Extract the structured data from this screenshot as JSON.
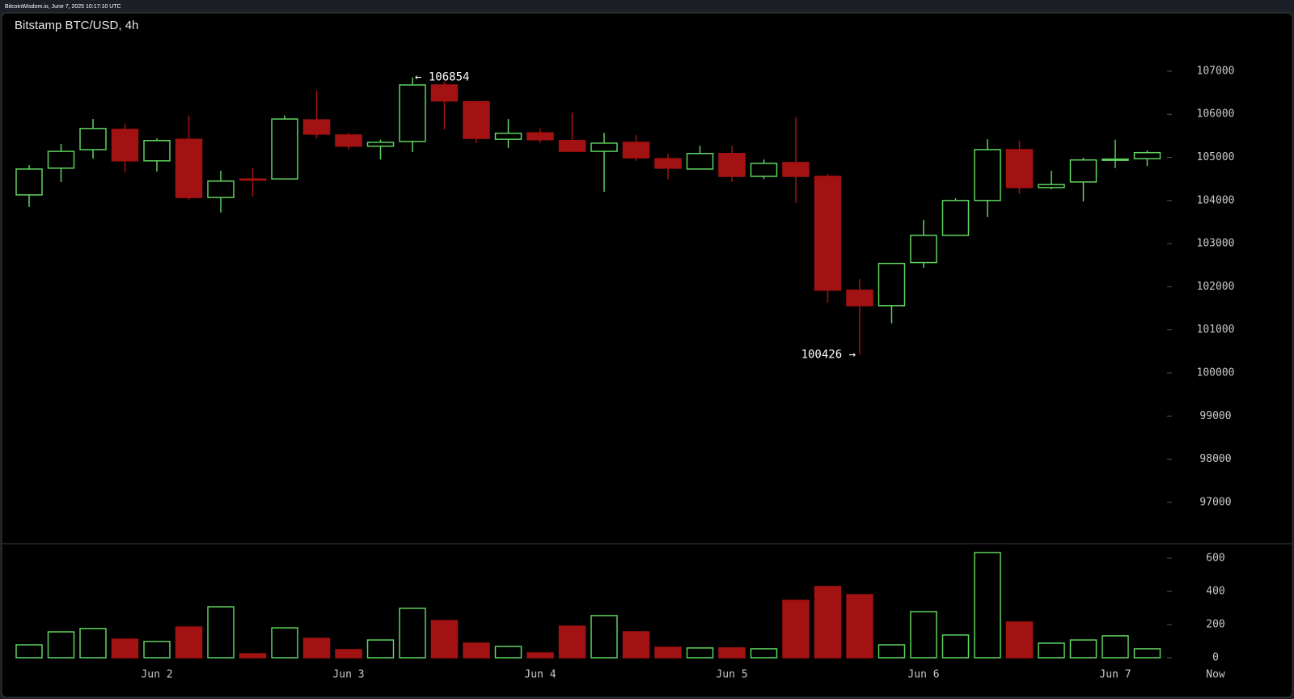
{
  "header": {
    "source": "BitcoinWisdom.io, June 7, 2025 10:17:10 UTC"
  },
  "chart_data": [
    {
      "type": "candlestick",
      "title": "Bitstamp BTC/USD, 4h",
      "categories": [
        null,
        null,
        null,
        null,
        "Jun 2",
        null,
        null,
        null,
        null,
        null,
        "Jun 3",
        null,
        null,
        null,
        null,
        null,
        "Jun 4",
        null,
        null,
        null,
        null,
        null,
        "Jun 5",
        null,
        null,
        null,
        null,
        null,
        "Jun 6",
        null,
        null,
        null,
        null,
        null,
        "Jun 7",
        null
      ],
      "open": [
        104130,
        104750,
        105180,
        105650,
        104920,
        105420,
        104070,
        104500,
        104500,
        105870,
        105520,
        105260,
        105370,
        106680,
        106290,
        105420,
        105570,
        105390,
        105140,
        105350,
        104970,
        104730,
        105090,
        104560,
        104880,
        104560,
        101920,
        101560,
        102560,
        103190,
        104000,
        105180,
        104300,
        104430,
        104950,
        104970
      ],
      "high": [
        104820,
        105310,
        105890,
        105780,
        105440,
        105970,
        104690,
        104750,
        105970,
        106550,
        105570,
        105410,
        106854,
        106760,
        106310,
        105890,
        105670,
        106040,
        105570,
        105520,
        105090,
        105270,
        105270,
        104950,
        105930,
        104620,
        102180,
        102540,
        103550,
        104050,
        105420,
        105390,
        104690,
        104990,
        105410,
        105160
      ],
      "low": [
        103850,
        104430,
        104970,
        104650,
        104670,
        104020,
        103720,
        104090,
        104500,
        105440,
        105180,
        104950,
        105120,
        105650,
        105330,
        105220,
        105330,
        105140,
        104200,
        104920,
        104490,
        104730,
        104430,
        104500,
        103940,
        101630,
        100426,
        101150,
        102440,
        103190,
        103620,
        104150,
        104260,
        103980,
        104750,
        104800
      ],
      "close": [
        104730,
        105140,
        105670,
        104920,
        105390,
        104070,
        104450,
        104480,
        105890,
        105540,
        105260,
        105350,
        106680,
        106310,
        105440,
        105560,
        105410,
        105140,
        105330,
        104990,
        104750,
        105090,
        104560,
        104860,
        104560,
        101920,
        101560,
        102540,
        103190,
        104000,
        105180,
        104300,
        104370,
        104940,
        104960,
        105110
      ],
      "up_color": "#5fd35f",
      "down_color": "#a31212",
      "ylim": [
        96040,
        107900
      ],
      "yticks": [
        97000,
        98000,
        99000,
        100000,
        101000,
        102000,
        103000,
        104000,
        105000,
        106000,
        107000
      ],
      "annotations": [
        {
          "text": "← 106854",
          "x": 12,
          "y": 106854
        },
        {
          "text": "100426 →",
          "x": 26,
          "y": 100426
        }
      ],
      "x_end_label": "Now"
    },
    {
      "type": "volume",
      "values": [
        78,
        156,
        176,
        112,
        98,
        185,
        307,
        24,
        180,
        117,
        49,
        107,
        298,
        224,
        88,
        68,
        29,
        190,
        254,
        156,
        63,
        59,
        59,
        54,
        346,
        429,
        380,
        78,
        278,
        137,
        634,
        215,
        88,
        107,
        132,
        54
      ],
      "ylim": [
        0,
        668
      ],
      "yticks": [
        0,
        200,
        400,
        600
      ]
    }
  ]
}
